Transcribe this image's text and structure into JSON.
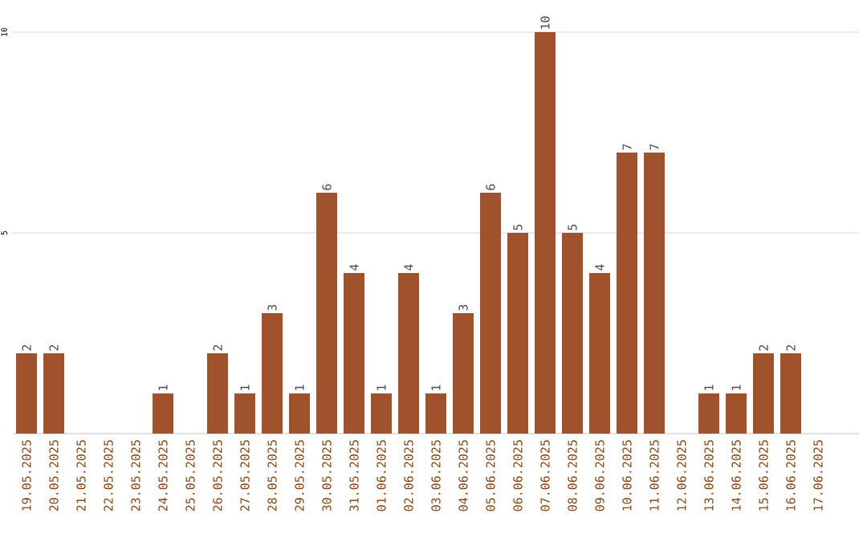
{
  "chart_data": {
    "type": "bar",
    "categories": [
      "19.05.2025",
      "20.05.2025",
      "21.05.2025",
      "22.05.2025",
      "23.05.2025",
      "24.05.2025",
      "25.05.2025",
      "26.05.2025",
      "27.05.2025",
      "28.05.2025",
      "29.05.2025",
      "30.05.2025",
      "31.05.2025",
      "01.06.2025",
      "02.06.2025",
      "03.06.2025",
      "04.06.2025",
      "05.06.2025",
      "06.06.2025",
      "07.06.2025",
      "08.06.2025",
      "09.06.2025",
      "10.06.2025",
      "11.06.2025",
      "12.06.2025",
      "13.06.2025",
      "14.06.2025",
      "15.06.2025",
      "16.06.2025",
      "17.06.2025"
    ],
    "values": [
      2,
      2,
      0,
      0,
      0,
      1,
      0,
      2,
      1,
      3,
      1,
      6,
      4,
      1,
      4,
      1,
      3,
      6,
      5,
      10,
      5,
      4,
      7,
      7,
      0,
      1,
      1,
      2,
      2,
      0
    ],
    "value_labels": [
      "2",
      "2",
      null,
      null,
      null,
      "1",
      null,
      "2",
      "1",
      "3",
      "1",
      "6",
      "4",
      "1",
      "4",
      "1",
      "3",
      "6",
      "5",
      "10",
      "5",
      "4",
      "7",
      "7",
      null,
      "1",
      "1",
      "2",
      "2",
      null
    ],
    "color": "#a0522d",
    "ylim": [
      0,
      10
    ],
    "yticks": [
      5,
      10
    ],
    "grid": "y"
  }
}
